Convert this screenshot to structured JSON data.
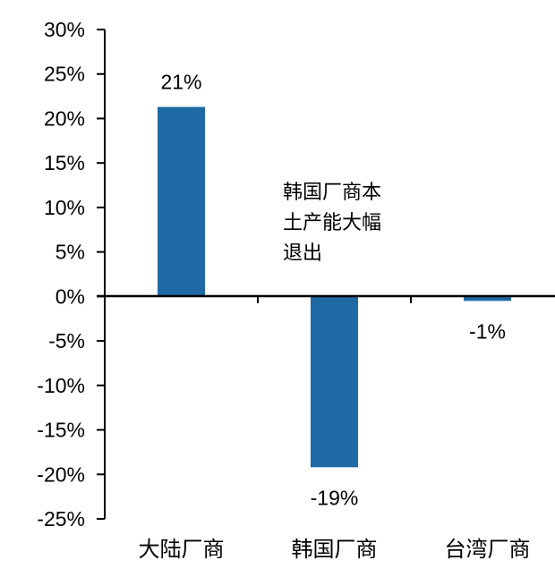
{
  "chart_data": {
    "type": "bar",
    "title": "",
    "xlabel": "",
    "ylabel": "",
    "categories": [
      "大陆厂商",
      "韩国厂商",
      "台湾厂商"
    ],
    "values": [
      21.3,
      -19.2,
      -0.5
    ],
    "data_labels": [
      "21%",
      "-19%",
      "-1%"
    ],
    "ylim": [
      -25,
      30
    ],
    "yticks": [
      30,
      25,
      20,
      15,
      10,
      5,
      0,
      -5,
      -10,
      -15,
      -20,
      -25
    ],
    "ytick_labels": [
      "30%",
      "25%",
      "20%",
      "15%",
      "10%",
      "5%",
      "0%",
      "-5%",
      "-10%",
      "-15%",
      "-20%",
      "-25%"
    ],
    "grid": false,
    "legend": null,
    "annotations": [
      {
        "lines": [
          "韩国厂商本",
          "土产能大幅",
          "退出"
        ]
      }
    ],
    "bar_color": "#1F69A4"
  }
}
